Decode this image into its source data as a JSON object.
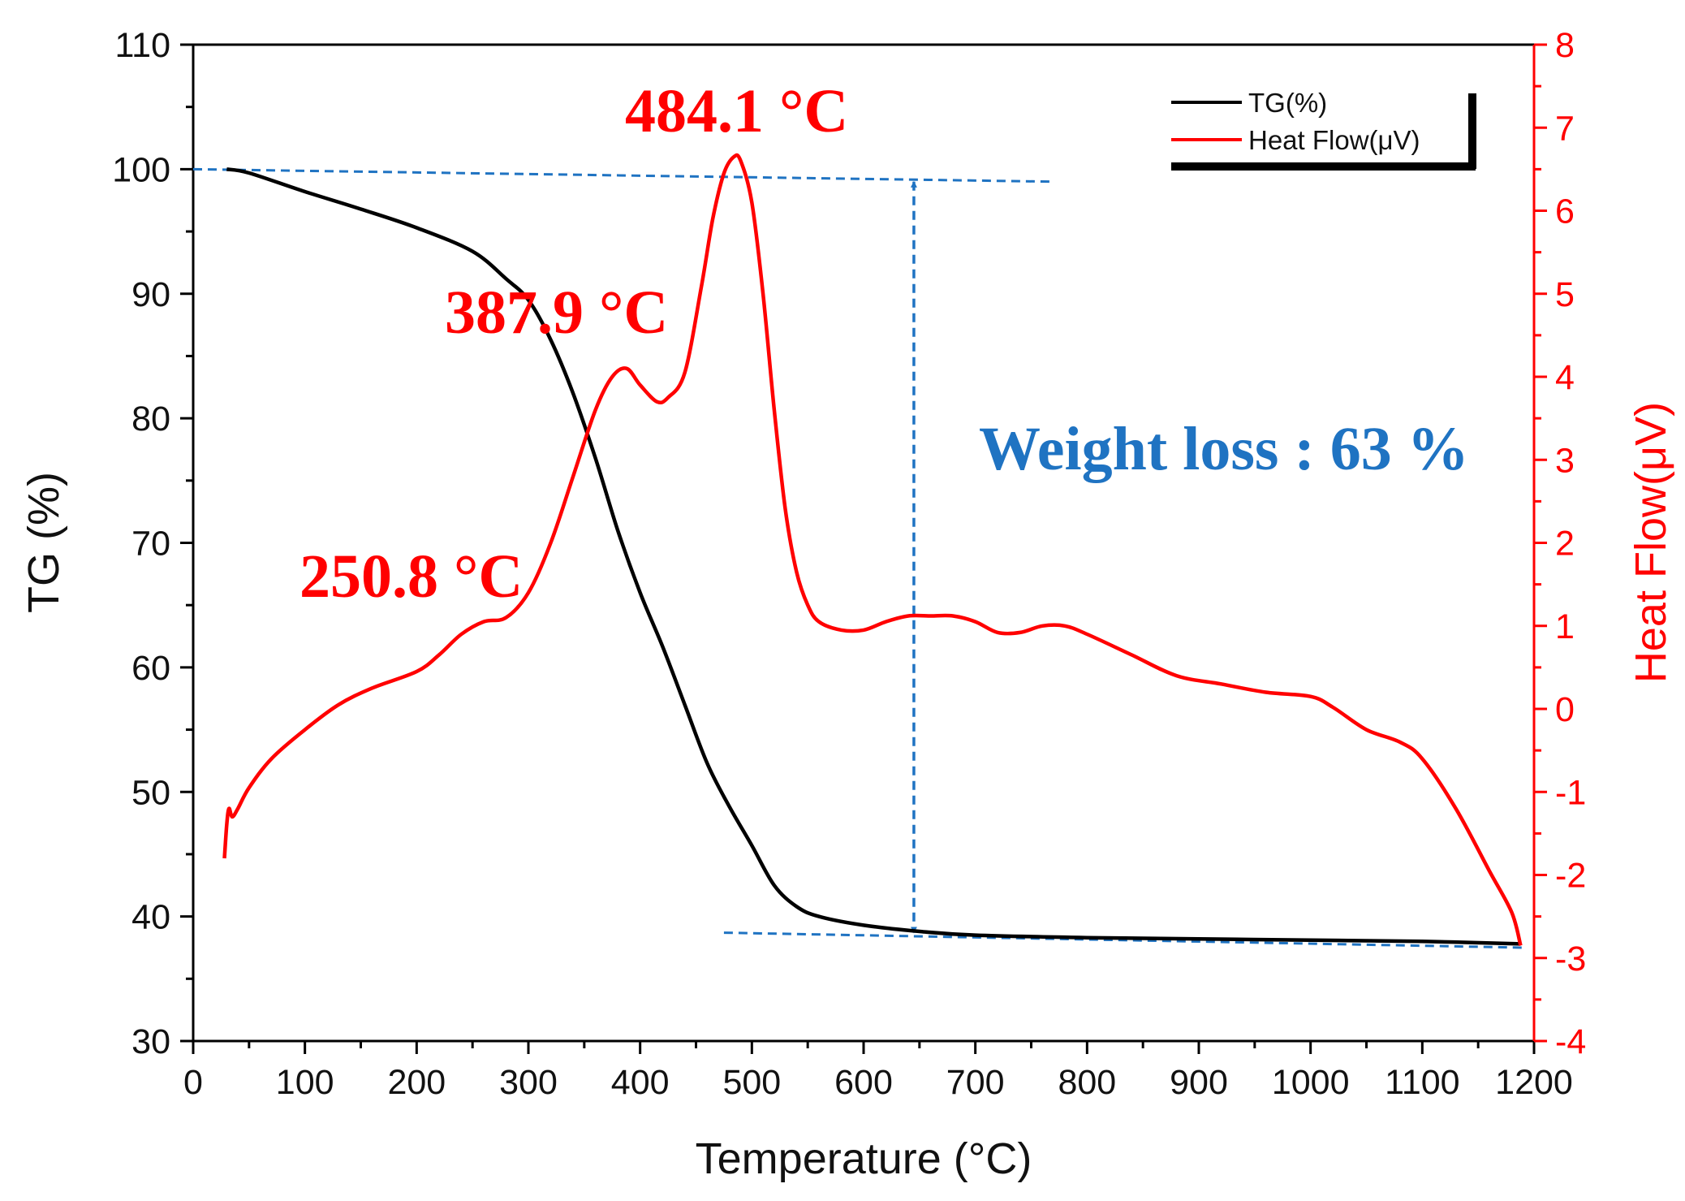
{
  "chart_data": {
    "type": "line",
    "xlabel": "Temperature (°C)",
    "ylabel_left": "TG (%)",
    "ylabel_right": "Heat Flow(μV)",
    "xlim": [
      0,
      1200
    ],
    "ylim_left": [
      30,
      110
    ],
    "ylim_right": [
      -4,
      8
    ],
    "x_ticks": [
      0,
      100,
      200,
      300,
      400,
      500,
      600,
      700,
      800,
      900,
      1000,
      1100,
      1200
    ],
    "y_left_ticks": [
      30,
      40,
      50,
      60,
      70,
      80,
      90,
      100,
      110
    ],
    "y_right_ticks": [
      -4,
      -3,
      -2,
      -1,
      0,
      1,
      2,
      3,
      4,
      5,
      6,
      7,
      8
    ],
    "grid": false,
    "legend_position": "top-right",
    "colors": {
      "tg": "#000000",
      "heat_flow": "#ff0000",
      "annotation": "#1f73c2",
      "frame": "#000000"
    },
    "series": [
      {
        "name": "TG(%)",
        "axis": "left",
        "color": "#000000",
        "x": [
          30,
          50,
          100,
          150,
          200,
          250,
          280,
          300,
          320,
          340,
          360,
          380,
          400,
          420,
          440,
          460,
          480,
          500,
          520,
          540,
          560,
          600,
          650,
          700,
          800,
          900,
          1000,
          1100,
          1188
        ],
        "y": [
          100,
          99.7,
          98.2,
          96.8,
          95.3,
          93.4,
          91.2,
          89.5,
          86.3,
          82,
          76.8,
          71,
          66,
          61.7,
          57,
          52.3,
          48.8,
          45.7,
          42.5,
          40.8,
          40,
          39.3,
          38.8,
          38.5,
          38.3,
          38.2,
          38.1,
          38,
          37.8
        ]
      },
      {
        "name": "Heat Flow(μV)",
        "axis": "right",
        "color": "#ff0000",
        "x": [
          28,
          30,
          32,
          35,
          40,
          50,
          70,
          100,
          130,
          160,
          200,
          220,
          240,
          260,
          280,
          300,
          320,
          340,
          360,
          375,
          388,
          400,
          415,
          425,
          440,
          455,
          465,
          475,
          484,
          490,
          500,
          510,
          520,
          530,
          540,
          550,
          560,
          580,
          600,
          620,
          640,
          660,
          680,
          700,
          720,
          740,
          760,
          780,
          800,
          840,
          880,
          920,
          960,
          1000,
          1020,
          1050,
          1080,
          1100,
          1130,
          1160,
          1180,
          1188
        ],
        "y": [
          -1.8,
          -1.4,
          -1.2,
          -1.3,
          -1.2,
          -0.95,
          -0.6,
          -0.25,
          0.05,
          0.25,
          0.45,
          0.65,
          0.9,
          1.05,
          1.1,
          1.4,
          2,
          2.8,
          3.6,
          4,
          4.1,
          3.9,
          3.7,
          3.75,
          4.05,
          5.1,
          5.9,
          6.45,
          6.65,
          6.6,
          6.1,
          5,
          3.6,
          2.4,
          1.65,
          1.25,
          1.05,
          0.95,
          0.95,
          1.05,
          1.12,
          1.12,
          1.12,
          1.05,
          0.92,
          0.92,
          1,
          1,
          0.9,
          0.65,
          0.4,
          0.3,
          0.2,
          0.15,
          0.02,
          -0.25,
          -0.4,
          -0.6,
          -1.2,
          -1.95,
          -2.45,
          -2.85
        ]
      }
    ],
    "legend": [
      "TG(%)",
      "Heat Flow(μV)"
    ],
    "annotations": [
      {
        "text": "484.1 °C",
        "x": 484.1,
        "color": "#ff0000"
      },
      {
        "text": "387.9 °C",
        "x": 387.9,
        "color": "#ff0000"
      },
      {
        "text": "250.8 °C",
        "x": 250.8,
        "color": "#ff0000"
      },
      {
        "text": "Weight loss : 63 %",
        "color": "#1f73c2"
      }
    ],
    "reference_lines": [
      {
        "name": "initial-mass-line",
        "x": [
          0,
          770
        ],
        "y": [
          100,
          99
        ]
      },
      {
        "name": "final-mass-line",
        "x": [
          475,
          1190
        ],
        "y": [
          38.7,
          37.5
        ]
      },
      {
        "name": "weight-loss-arrow",
        "x": 645,
        "y": [
          99,
          38.7
        ]
      }
    ]
  }
}
